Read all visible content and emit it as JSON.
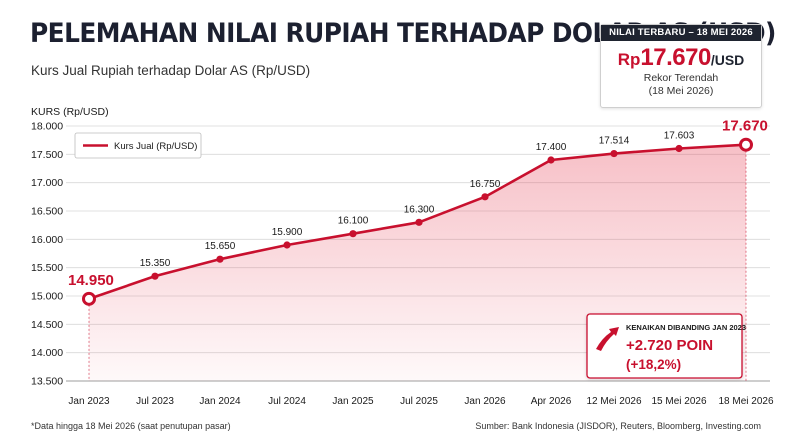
{
  "header": {
    "title": "PELEMAHAN NILAI RUPIAH TERHADAP DOLAR AS (USD)",
    "subtitle": "Kurs Jual Rupiah terhadap Dolar AS (Rp/USD)"
  },
  "info_box": {
    "heading": "NILAI TERBARU – 18 MEI 2026",
    "currency": "Rp",
    "value": "17.670",
    "unit": "/USD",
    "note": "Rekor Terendah",
    "date": "(18 Mei 2026)"
  },
  "callout": {
    "heading": "KENAIKAN DIBANDING JAN 2023",
    "change": "+2.720 POIN",
    "percent": "(+18,2%)"
  },
  "footer": {
    "footnote": "*Data hingga 18 Mei 2026 (saat penutupan pasar)",
    "source": "Sumber: Bank Indonesia (JISDOR), Reuters, Bloomberg, Investing.com"
  },
  "colors": {
    "line": "#c8102e",
    "title": "#1c2030",
    "grid": "#d9d9d9"
  },
  "chart_data": {
    "type": "line",
    "ylabel": "KURS (Rp/USD)",
    "ylim": [
      13500,
      18000
    ],
    "ytick_labels": [
      "13.500",
      "14.000",
      "14.500",
      "15.000",
      "15.500",
      "16.000",
      "16.500",
      "17.000",
      "17.500",
      "18.000"
    ],
    "categories": [
      "Jan 2023",
      "Jul 2023",
      "Jan 2024",
      "Jul 2024",
      "Jan 2025",
      "Jul 2025",
      "Jan 2026",
      "Apr 2026",
      "12 Mei 2026",
      "15 Mei 2026",
      "18 Mei 2026"
    ],
    "series": [
      {
        "name": "Kurs Jual (Rp/USD)",
        "values": [
          14950,
          15350,
          15650,
          15900,
          16100,
          16300,
          16750,
          17400,
          17514,
          17603,
          17670
        ],
        "labels": [
          "14.950",
          "15.350",
          "15.650",
          "15.900",
          "16.100",
          "16.300",
          "16.750",
          "17.400",
          "17.514",
          "17.603",
          "17.670"
        ]
      }
    ],
    "highlighted_points": [
      0,
      10
    ],
    "grid": true,
    "legend_position": "top-left"
  }
}
